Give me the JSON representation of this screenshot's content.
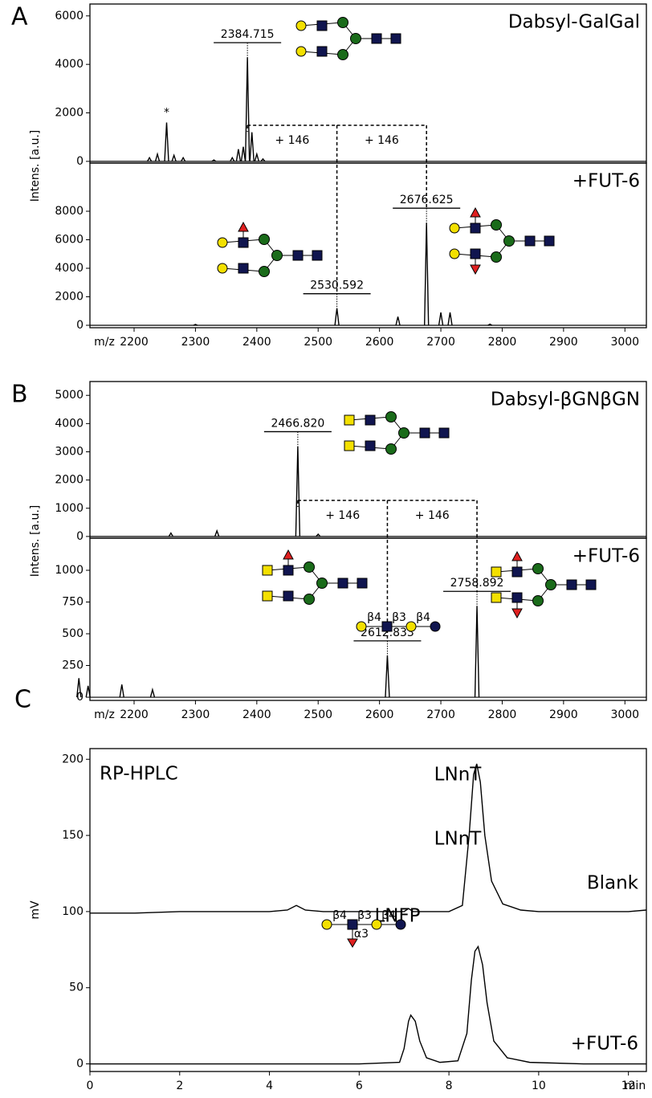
{
  "chart_data": [
    {
      "type": "spectrum",
      "panel": "A",
      "title": "Dabsyl-GalGal",
      "ylabel": "Intens. [a.u.]",
      "xlim": [
        2128,
        3035
      ],
      "ylim": [
        -70,
        6490
      ],
      "yticks": [
        0,
        2000,
        4000,
        6000
      ],
      "x": [
        2225,
        2238,
        2253,
        2265,
        2280,
        2330,
        2360,
        2370,
        2378,
        2384.715,
        2392,
        2400,
        2410
      ],
      "values": [
        150,
        300,
        1600,
        250,
        150,
        60,
        150,
        500,
        600,
        4300,
        1200,
        300,
        100
      ],
      "note": {
        "value": 2253,
        "label": "*"
      },
      "peak_labels": [
        {
          "value": 2384.715,
          "label": "2384.715"
        }
      ],
      "shifts": [
        {
          "label": "+ 146",
          "from": 2384.715,
          "to": 2530.592
        },
        {
          "label": "+ 146",
          "from": 2530.592,
          "to": 2676.625
        }
      ]
    },
    {
      "type": "spectrum",
      "title": "+FUT-6",
      "xlabel": "m/z",
      "xlim": [
        2128,
        3035
      ],
      "ylim": [
        -170,
        11380
      ],
      "yticks": [
        0,
        2000,
        4000,
        6000,
        8000
      ],
      "xticks": [
        2200,
        2300,
        2400,
        2500,
        2600,
        2700,
        2800,
        2900,
        3000
      ],
      "x": [
        2300,
        2530.592,
        2630,
        2676.625,
        2700,
        2715,
        2780
      ],
      "values": [
        60,
        1200,
        600,
        7200,
        900,
        900,
        80
      ],
      "peak_labels": [
        {
          "value": 2530.592,
          "label": "2530.592"
        },
        {
          "value": 2676.625,
          "label": "2676.625"
        }
      ]
    },
    {
      "type": "spectrum",
      "panel": "B",
      "title": "Dabsyl-βGNβGN",
      "ylabel": "Intens. [a.u.]",
      "xlim": [
        2128,
        3035
      ],
      "ylim": [
        -60,
        5490
      ],
      "yticks": [
        0,
        1000,
        2000,
        3000,
        4000,
        5000
      ],
      "x": [
        2260,
        2335,
        2466.82,
        2500
      ],
      "values": [
        120,
        200,
        3200,
        80
      ],
      "peak_labels": [
        {
          "value": 2466.82,
          "label": "2466.820"
        }
      ],
      "shifts": [
        {
          "label": "+ 146",
          "from": 2466.82,
          "to": 2612.833
        },
        {
          "label": "+ 146",
          "from": 2612.833,
          "to": 2758.892
        }
      ]
    },
    {
      "type": "spectrum",
      "title": "+FUT-6",
      "xlabel": "m/z",
      "xlim": [
        2128,
        3035
      ],
      "ylim": [
        -25,
        1253
      ],
      "yticks": [
        0,
        250,
        500,
        750,
        1000
      ],
      "xticks": [
        2200,
        2300,
        2400,
        2500,
        2600,
        2700,
        2800,
        2900,
        3000
      ],
      "x": [
        2110,
        2125,
        2180,
        2230,
        2612.833,
        2758.892
      ],
      "values": [
        150,
        90,
        100,
        60,
        330,
        720
      ],
      "peak_labels": [
        {
          "value": 2612.833,
          "label": "2612.833"
        },
        {
          "value": 2758.892,
          "label": "2758.892"
        }
      ]
    },
    {
      "type": "line",
      "panel": "C",
      "title": "RP-HPLC",
      "ylabel": "mV",
      "xlabel": "min",
      "xlim": [
        0,
        12.4
      ],
      "ylim": [
        -5,
        207
      ],
      "xticks": [
        0,
        2,
        4,
        6,
        8,
        10,
        12
      ],
      "yticks": [
        0,
        50,
        100,
        150,
        200
      ],
      "series": [
        {
          "name": "Blank",
          "color": "#000000",
          "x": [
            0,
            1,
            2,
            3,
            4,
            4.4,
            4.6,
            4.8,
            5.2,
            6,
            7,
            7.1,
            7.2,
            8,
            8.3,
            8.45,
            8.55,
            8.62,
            8.7,
            8.8,
            8.95,
            9.2,
            9.6,
            10,
            11,
            12,
            12.4
          ],
          "values": [
            99,
            99,
            100,
            100,
            100,
            101,
            104,
            101,
            100,
            100,
            100,
            102,
            100,
            100,
            104,
            150,
            190,
            197,
            185,
            150,
            120,
            105,
            101,
            100,
            100,
            100,
            101
          ]
        },
        {
          "name": "+FUT-6",
          "color": "#000000",
          "x": [
            0,
            2,
            4,
            6,
            6.9,
            7.0,
            7.1,
            7.15,
            7.25,
            7.35,
            7.5,
            7.8,
            8.2,
            8.4,
            8.5,
            8.58,
            8.65,
            8.75,
            8.85,
            9.0,
            9.3,
            9.8,
            11,
            12.4
          ],
          "values": [
            0,
            0,
            0,
            0,
            1,
            10,
            28,
            32,
            28,
            15,
            4,
            1,
            2,
            20,
            55,
            74,
            77,
            65,
            40,
            15,
            4,
            1,
            0,
            0
          ]
        }
      ],
      "peak_names": [
        "LNnT",
        "LNnT",
        "LNFP"
      ],
      "glycans": [
        {
          "linkages": [
            "β4",
            "β3",
            "β4"
          ]
        },
        {
          "linkages": [
            "β4",
            "β3",
            "β4",
            "α3"
          ]
        }
      ]
    }
  ]
}
